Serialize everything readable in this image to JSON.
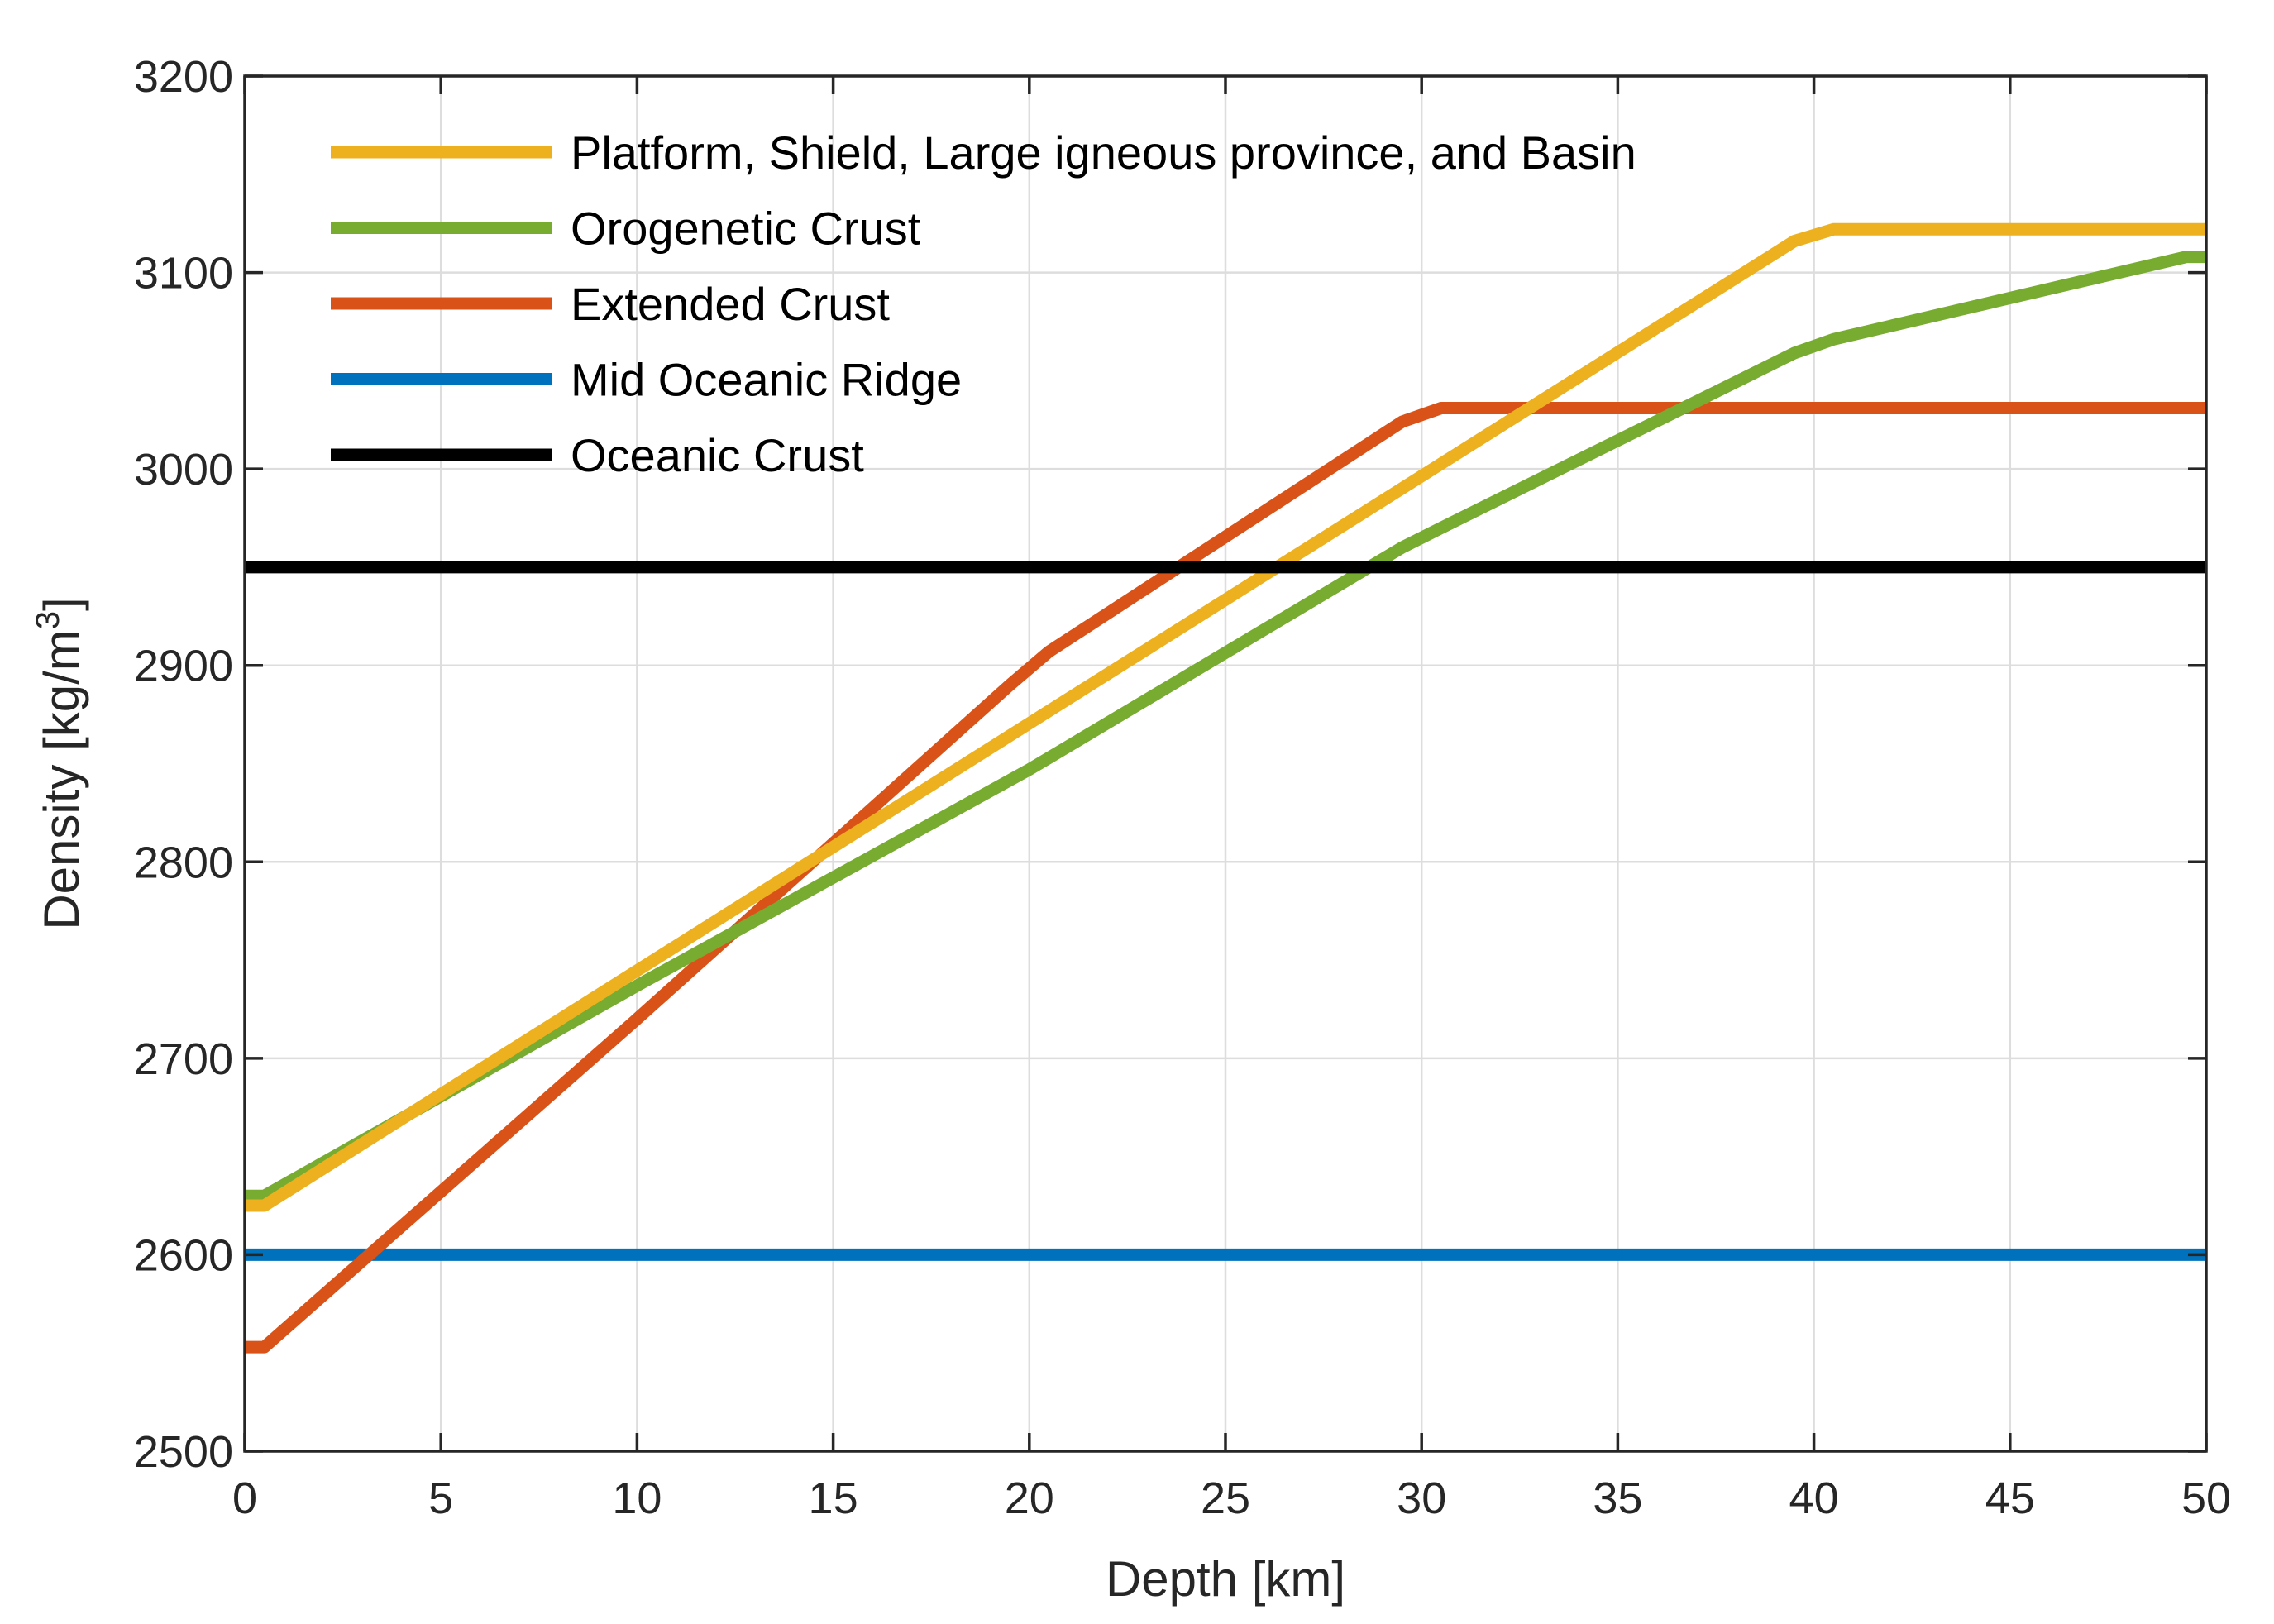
{
  "chart_data": {
    "type": "line",
    "title": "",
    "xlabel": "Depth [km]",
    "ylabel_main": "Density [kg/m",
    "ylabel_sup": "3",
    "ylabel_end": "]",
    "xlim": [
      0,
      50
    ],
    "ylim": [
      2500,
      3200
    ],
    "xticks": [
      0,
      5,
      10,
      15,
      20,
      25,
      30,
      35,
      40,
      45,
      50
    ],
    "yticks": [
      2500,
      2600,
      2700,
      2800,
      2900,
      3000,
      3100,
      3200
    ],
    "grid": true,
    "legend_position": "top-left",
    "series": [
      {
        "name": "Platform, Shield, Large igneous province, and Basin",
        "color": "#EDB120",
        "x": [
          0,
          0.5,
          39.5,
          40.5,
          50
        ],
        "y": [
          2625,
          2625,
          3116,
          3122,
          3122
        ]
      },
      {
        "name": "Orogenetic Crust",
        "color": "#77AC30",
        "x": [
          0,
          0.5,
          10,
          20,
          29.5,
          30.5,
          39.5,
          40.5,
          49.5,
          50
        ],
        "y": [
          2630,
          2630,
          2737,
          2847,
          2960,
          2970,
          3059,
          3066,
          3108,
          3108
        ]
      },
      {
        "name": "Extended Crust",
        "color": "#D95319",
        "x": [
          0,
          0.5,
          10,
          19.5,
          20.5,
          29.5,
          30.5,
          50
        ],
        "y": [
          2553,
          2553,
          2720,
          2890,
          2907,
          3024,
          3031,
          3031
        ]
      },
      {
        "name": "Mid Oceanic Ridge",
        "color": "#0072BD",
        "x": [
          0,
          50
        ],
        "y": [
          2600,
          2600
        ]
      },
      {
        "name": "Oceanic Crust",
        "color": "#000000",
        "x": [
          0,
          50
        ],
        "y": [
          2950,
          2950
        ]
      }
    ]
  }
}
